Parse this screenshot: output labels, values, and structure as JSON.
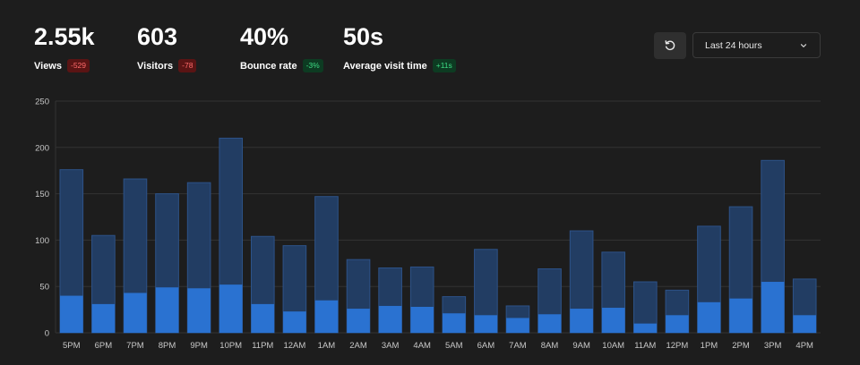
{
  "metrics": [
    {
      "value": "2.55k",
      "label": "Views",
      "change": "-529",
      "trend": "negative"
    },
    {
      "value": "603",
      "label": "Visitors",
      "change": "-78",
      "trend": "negative"
    },
    {
      "value": "40%",
      "label": "Bounce rate",
      "change": "-3%",
      "trend": "positive"
    },
    {
      "value": "50s",
      "label": "Average visit time",
      "change": "+11s",
      "trend": "positive"
    }
  ],
  "controls": {
    "reset_icon": "refresh-icon",
    "range_selected": "Last 24 hours",
    "dropdown_icon": "chevron-down-icon"
  },
  "colors": {
    "views": "#223d63",
    "views_border": "#2d5288",
    "visitors": "#2a72d1",
    "grid": "#333333",
    "axis_text": "#c8c8c8"
  },
  "chart_data": {
    "type": "bar",
    "stacked": "overlay",
    "categories": [
      "5PM",
      "6PM",
      "7PM",
      "8PM",
      "9PM",
      "10PM",
      "11PM",
      "12AM",
      "1AM",
      "2AM",
      "3AM",
      "4AM",
      "5AM",
      "6AM",
      "7AM",
      "8AM",
      "9AM",
      "10AM",
      "11AM",
      "12PM",
      "1PM",
      "2PM",
      "3PM",
      "4PM"
    ],
    "series": [
      {
        "values": [
          176,
          105,
          166,
          150,
          162,
          210,
          104,
          94,
          147,
          79,
          70,
          71,
          39,
          90,
          29,
          69,
          110,
          87,
          55,
          46,
          115,
          136,
          186,
          58
        ]
      },
      {
        "values": [
          40,
          31,
          43,
          49,
          48,
          52,
          31,
          23,
          35,
          26,
          29,
          28,
          21,
          19,
          16,
          20,
          26,
          27,
          10,
          19,
          33,
          37,
          55,
          19
        ]
      }
    ],
    "ylim": [
      0,
      250
    ],
    "yticks": [
      0,
      50,
      100,
      150,
      200,
      250
    ],
    "grid": true,
    "legend": "none"
  }
}
